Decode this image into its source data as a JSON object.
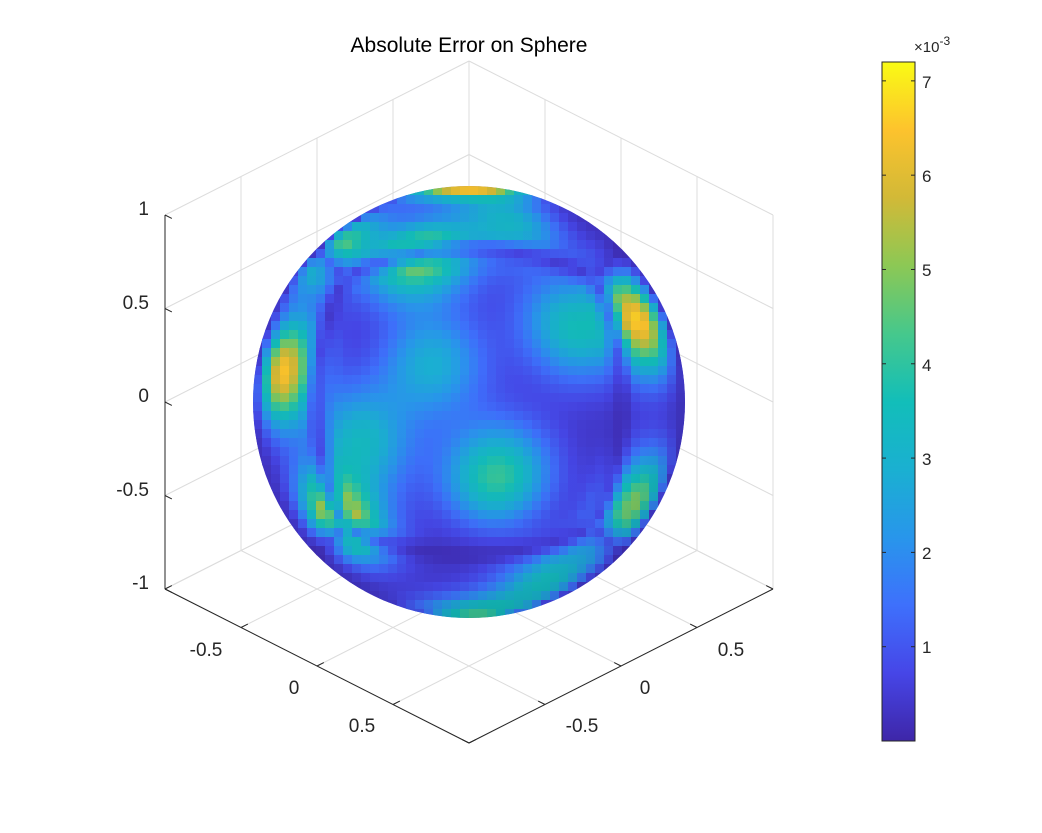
{
  "chart_data": {
    "type": "heatmap",
    "title": "Absolute Error on Sphere",
    "plot": "3d surface (sphere)",
    "view": "isometric",
    "xlim": [
      -1,
      1
    ],
    "ylim": [
      -1,
      1
    ],
    "zlim": [
      -1,
      1
    ],
    "x_ticks": [
      "-0.5",
      "0",
      "0.5"
    ],
    "y_ticks": [
      "-0.5",
      "0",
      "0.5"
    ],
    "z_ticks": [
      "1",
      "0.5",
      "0",
      "-0.5",
      "-1"
    ],
    "grid": true,
    "colormap": "parula",
    "colorbar": {
      "location": "right",
      "range": [
        0,
        0.0072
      ],
      "ticks": [
        "1",
        "2",
        "3",
        "4",
        "5",
        "6",
        "7"
      ],
      "exponent_label": "×10",
      "exponent": "-3"
    },
    "error_hotspots": [
      {
        "lon": 0,
        "lat": 84,
        "value": 0.007
      },
      {
        "lon": 58,
        "lat": 22,
        "value": 0.0063
      },
      {
        "lon": -60,
        "lat": 8,
        "value": 0.0062
      },
      {
        "lon": -45,
        "lat": -32,
        "value": 0.006
      },
      {
        "lon": -18,
        "lat": 42,
        "value": 0.0048
      },
      {
        "lon": -60,
        "lat": 45,
        "value": 0.0042
      },
      {
        "lon": 8,
        "lat": -20,
        "value": 0.0038
      },
      {
        "lon": 60,
        "lat": -28,
        "value": 0.0046
      },
      {
        "lon": 10,
        "lat": -78,
        "value": 0.0038
      },
      {
        "lon": 30,
        "lat": 20,
        "value": 0.003
      },
      {
        "lon": -30,
        "lat": -10,
        "value": 0.0028
      },
      {
        "lon": 40,
        "lat": -55,
        "value": 0.003
      },
      {
        "lon": -10,
        "lat": 10,
        "value": 0.0025
      },
      {
        "lon": 20,
        "lat": 55,
        "value": 0.0027
      }
    ]
  }
}
